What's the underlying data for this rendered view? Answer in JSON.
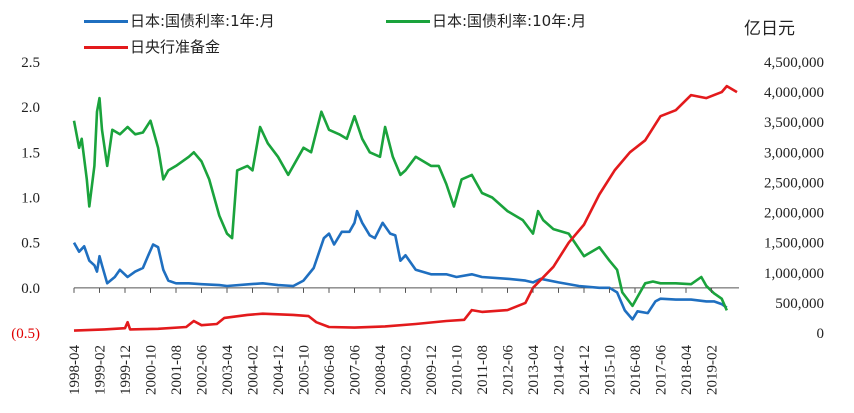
{
  "chart_data": {
    "type": "line",
    "title": "",
    "right_axis_title": "亿日元",
    "left_axis": {
      "ylim": [
        -0.5,
        2.5
      ],
      "ticks": [
        {
          "value": 2.5,
          "label": "2.5",
          "color": "#222222"
        },
        {
          "value": 2.0,
          "label": "2.0",
          "color": "#222222"
        },
        {
          "value": 1.5,
          "label": "1.5",
          "color": "#222222"
        },
        {
          "value": 1.0,
          "label": "1.0",
          "color": "#222222"
        },
        {
          "value": 0.5,
          "label": "0.5",
          "color": "#222222"
        },
        {
          "value": 0.0,
          "label": "0.0",
          "color": "#222222"
        },
        {
          "value": -0.5,
          "label": "(0.5)",
          "color": "#e00000"
        }
      ]
    },
    "right_axis": {
      "ylim": [
        0,
        4500000
      ],
      "ticks": [
        {
          "value": 4500000,
          "label": "4,500,000"
        },
        {
          "value": 4000000,
          "label": "4,000,000"
        },
        {
          "value": 3500000,
          "label": "3,500,000"
        },
        {
          "value": 3000000,
          "label": "3,000,000"
        },
        {
          "value": 2500000,
          "label": "2,500,000"
        },
        {
          "value": 2000000,
          "label": "2,000,000"
        },
        {
          "value": 1500000,
          "label": "1,500,000"
        },
        {
          "value": 1000000,
          "label": "1,000,000"
        },
        {
          "value": 500000,
          "label": "500,000"
        },
        {
          "value": 0,
          "label": "0"
        }
      ]
    },
    "x_axis": {
      "start": "1998-04",
      "end": "2019-12",
      "tick_labels": [
        "1998-04",
        "1999-02",
        "1999-12",
        "2000-10",
        "2001-08",
        "2002-06",
        "2003-04",
        "2004-02",
        "2004-12",
        "2005-10",
        "2006-08",
        "2007-06",
        "2008-04",
        "2009-02",
        "2009-12",
        "2010-10",
        "2011-08",
        "2012-06",
        "2013-04",
        "2014-02",
        "2014-12",
        "2015-10",
        "2016-08",
        "2017-06",
        "2018-04",
        "2019-02"
      ]
    },
    "legend": [
      {
        "name": "日本:国债利率:1年:月",
        "color": "#1f6fc0"
      },
      {
        "name": "日本:国债利率:10年:月",
        "color": "#1aa33c"
      },
      {
        "name": "日央行准备金",
        "color": "#e31a1c"
      }
    ],
    "series": [
      {
        "name": "日本:国债利率:1年:月",
        "color": "#1f6fc0",
        "axis": "left",
        "points": [
          [
            "1998-04",
            0.5
          ],
          [
            "1998-06",
            0.4
          ],
          [
            "1998-08",
            0.46
          ],
          [
            "1998-10",
            0.3
          ],
          [
            "1998-12",
            0.25
          ],
          [
            "1999-01",
            0.18
          ],
          [
            "1999-02",
            0.35
          ],
          [
            "1999-03",
            0.25
          ],
          [
            "1999-05",
            0.05
          ],
          [
            "1999-08",
            0.12
          ],
          [
            "1999-10",
            0.2
          ],
          [
            "2000-01",
            0.12
          ],
          [
            "2000-04",
            0.18
          ],
          [
            "2000-07",
            0.22
          ],
          [
            "2000-09",
            0.35
          ],
          [
            "2000-11",
            0.48
          ],
          [
            "2001-01",
            0.45
          ],
          [
            "2001-03",
            0.2
          ],
          [
            "2001-05",
            0.08
          ],
          [
            "2001-08",
            0.05
          ],
          [
            "2002-01",
            0.05
          ],
          [
            "2002-06",
            0.04
          ],
          [
            "2003-01",
            0.03
          ],
          [
            "2003-04",
            0.02
          ],
          [
            "2004-01",
            0.04
          ],
          [
            "2004-06",
            0.05
          ],
          [
            "2004-12",
            0.03
          ],
          [
            "2005-06",
            0.02
          ],
          [
            "2005-10",
            0.08
          ],
          [
            "2006-02",
            0.22
          ],
          [
            "2006-06",
            0.55
          ],
          [
            "2006-08",
            0.6
          ],
          [
            "2006-10",
            0.48
          ],
          [
            "2007-01",
            0.62
          ],
          [
            "2007-04",
            0.62
          ],
          [
            "2007-06",
            0.72
          ],
          [
            "2007-07",
            0.85
          ],
          [
            "2007-09",
            0.72
          ],
          [
            "2007-12",
            0.58
          ],
          [
            "2008-02",
            0.55
          ],
          [
            "2008-05",
            0.72
          ],
          [
            "2008-08",
            0.6
          ],
          [
            "2008-10",
            0.58
          ],
          [
            "2008-12",
            0.3
          ],
          [
            "2009-02",
            0.36
          ],
          [
            "2009-06",
            0.2
          ],
          [
            "2009-12",
            0.15
          ],
          [
            "2010-06",
            0.15
          ],
          [
            "2010-10",
            0.12
          ],
          [
            "2011-04",
            0.15
          ],
          [
            "2011-08",
            0.12
          ],
          [
            "2012-06",
            0.1
          ],
          [
            "2013-01",
            0.08
          ],
          [
            "2013-04",
            0.06
          ],
          [
            "2013-07",
            0.1
          ],
          [
            "2014-02",
            0.06
          ],
          [
            "2014-10",
            0.02
          ],
          [
            "2015-06",
            0.0
          ],
          [
            "2015-10",
            0.0
          ],
          [
            "2016-01",
            -0.05
          ],
          [
            "2016-04",
            -0.25
          ],
          [
            "2016-07",
            -0.35
          ],
          [
            "2016-09",
            -0.26
          ],
          [
            "2017-01",
            -0.28
          ],
          [
            "2017-04",
            -0.15
          ],
          [
            "2017-06",
            -0.12
          ],
          [
            "2017-12",
            -0.13
          ],
          [
            "2018-06",
            -0.13
          ],
          [
            "2018-12",
            -0.15
          ],
          [
            "2019-03",
            -0.15
          ],
          [
            "2019-06",
            -0.18
          ],
          [
            "2019-08",
            -0.22
          ]
        ]
      },
      {
        "name": "日本:国债利率:10年:月",
        "color": "#1aa33c",
        "axis": "left",
        "points": [
          [
            "1998-04",
            1.85
          ],
          [
            "1998-06",
            1.55
          ],
          [
            "1998-07",
            1.65
          ],
          [
            "1998-09",
            1.2
          ],
          [
            "1998-10",
            0.9
          ],
          [
            "1998-12",
            1.35
          ],
          [
            "1999-01",
            1.95
          ],
          [
            "1999-02",
            2.1
          ],
          [
            "1999-03",
            1.75
          ],
          [
            "1999-05",
            1.35
          ],
          [
            "1999-07",
            1.75
          ],
          [
            "1999-10",
            1.7
          ],
          [
            "2000-01",
            1.78
          ],
          [
            "2000-04",
            1.7
          ],
          [
            "2000-07",
            1.72
          ],
          [
            "2000-10",
            1.85
          ],
          [
            "2001-01",
            1.55
          ],
          [
            "2001-03",
            1.2
          ],
          [
            "2001-05",
            1.3
          ],
          [
            "2001-08",
            1.35
          ],
          [
            "2002-01",
            1.45
          ],
          [
            "2002-03",
            1.5
          ],
          [
            "2002-06",
            1.4
          ],
          [
            "2002-09",
            1.2
          ],
          [
            "2003-01",
            0.8
          ],
          [
            "2003-04",
            0.6
          ],
          [
            "2003-06",
            0.55
          ],
          [
            "2003-08",
            1.3
          ],
          [
            "2003-12",
            1.35
          ],
          [
            "2004-02",
            1.3
          ],
          [
            "2004-05",
            1.78
          ],
          [
            "2004-08",
            1.6
          ],
          [
            "2004-12",
            1.45
          ],
          [
            "2005-04",
            1.25
          ],
          [
            "2005-08",
            1.45
          ],
          [
            "2005-10",
            1.55
          ],
          [
            "2006-01",
            1.5
          ],
          [
            "2006-05",
            1.95
          ],
          [
            "2006-08",
            1.75
          ],
          [
            "2006-12",
            1.7
          ],
          [
            "2007-03",
            1.65
          ],
          [
            "2007-06",
            1.9
          ],
          [
            "2007-09",
            1.65
          ],
          [
            "2007-12",
            1.5
          ],
          [
            "2008-04",
            1.45
          ],
          [
            "2008-06",
            1.78
          ],
          [
            "2008-09",
            1.45
          ],
          [
            "2008-12",
            1.25
          ],
          [
            "2009-02",
            1.3
          ],
          [
            "2009-06",
            1.45
          ],
          [
            "2009-12",
            1.35
          ],
          [
            "2010-03",
            1.35
          ],
          [
            "2010-06",
            1.15
          ],
          [
            "2010-09",
            0.9
          ],
          [
            "2010-12",
            1.2
          ],
          [
            "2011-04",
            1.25
          ],
          [
            "2011-08",
            1.05
          ],
          [
            "2011-12",
            1.0
          ],
          [
            "2012-06",
            0.85
          ],
          [
            "2012-12",
            0.75
          ],
          [
            "2013-04",
            0.6
          ],
          [
            "2013-06",
            0.85
          ],
          [
            "2013-08",
            0.75
          ],
          [
            "2013-12",
            0.65
          ],
          [
            "2014-06",
            0.6
          ],
          [
            "2014-12",
            0.35
          ],
          [
            "2015-03",
            0.4
          ],
          [
            "2015-06",
            0.45
          ],
          [
            "2015-10",
            0.3
          ],
          [
            "2016-01",
            0.2
          ],
          [
            "2016-03",
            -0.05
          ],
          [
            "2016-07",
            -0.2
          ],
          [
            "2016-09",
            -0.1
          ],
          [
            "2016-12",
            0.05
          ],
          [
            "2017-03",
            0.07
          ],
          [
            "2017-06",
            0.05
          ],
          [
            "2017-12",
            0.05
          ],
          [
            "2018-06",
            0.04
          ],
          [
            "2018-10",
            0.12
          ],
          [
            "2018-12",
            0.02
          ],
          [
            "2019-03",
            -0.06
          ],
          [
            "2019-06",
            -0.12
          ],
          [
            "2019-08",
            -0.25
          ]
        ]
      },
      {
        "name": "日央行准备金",
        "color": "#e31a1c",
        "axis": "right",
        "points": [
          [
            "1998-04",
            40000
          ],
          [
            "1999-04",
            60000
          ],
          [
            "1999-12",
            80000
          ],
          [
            "2000-01",
            180000
          ],
          [
            "2000-02",
            60000
          ],
          [
            "2001-01",
            70000
          ],
          [
            "2001-12",
            100000
          ],
          [
            "2002-03",
            200000
          ],
          [
            "2002-06",
            130000
          ],
          [
            "2002-12",
            150000
          ],
          [
            "2003-03",
            250000
          ],
          [
            "2003-12",
            300000
          ],
          [
            "2004-06",
            320000
          ],
          [
            "2005-06",
            300000
          ],
          [
            "2005-12",
            280000
          ],
          [
            "2006-03",
            180000
          ],
          [
            "2006-08",
            100000
          ],
          [
            "2007-06",
            90000
          ],
          [
            "2008-06",
            110000
          ],
          [
            "2009-06",
            150000
          ],
          [
            "2010-06",
            200000
          ],
          [
            "2011-01",
            220000
          ],
          [
            "2011-04",
            380000
          ],
          [
            "2011-08",
            350000
          ],
          [
            "2012-06",
            380000
          ],
          [
            "2013-01",
            500000
          ],
          [
            "2013-04",
            750000
          ],
          [
            "2013-12",
            1100000
          ],
          [
            "2014-06",
            1500000
          ],
          [
            "2014-12",
            1800000
          ],
          [
            "2015-06",
            2300000
          ],
          [
            "2015-12",
            2700000
          ],
          [
            "2016-06",
            3000000
          ],
          [
            "2016-12",
            3200000
          ],
          [
            "2017-06",
            3600000
          ],
          [
            "2017-12",
            3700000
          ],
          [
            "2018-06",
            3950000
          ],
          [
            "2018-12",
            3900000
          ],
          [
            "2019-03",
            3950000
          ],
          [
            "2019-06",
            4000000
          ],
          [
            "2019-08",
            4100000
          ],
          [
            "2019-12",
            4000000
          ]
        ]
      }
    ]
  }
}
